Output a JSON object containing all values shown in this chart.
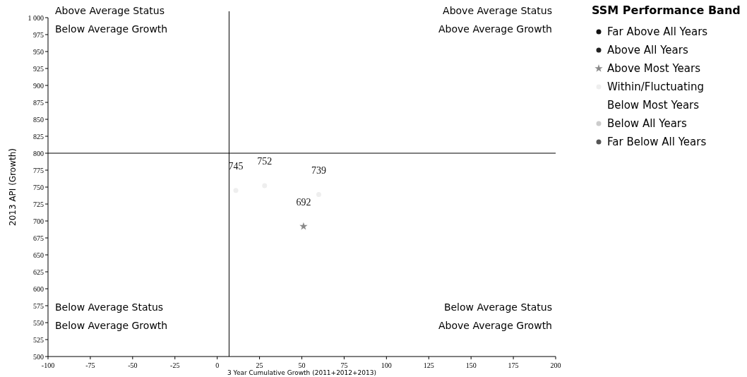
{
  "chart_data": {
    "type": "scatter",
    "xlabel": "3 Year Cumulative Growth (2011+2012+2013)",
    "ylabel": "2013 API (Growth)",
    "legend_title": "SSM Performance Band",
    "legend": "right",
    "grid": false,
    "data_labels": true,
    "xlim": [
      -100,
      200
    ],
    "xticks": [
      -100,
      -75,
      -50,
      -25,
      0,
      25,
      50,
      75,
      100,
      125,
      150,
      175,
      200
    ],
    "ylim": [
      500,
      1000
    ],
    "yticks": [
      500,
      525,
      550,
      575,
      600,
      625,
      650,
      675,
      700,
      725,
      750,
      775,
      800,
      825,
      850,
      875,
      900,
      925,
      950,
      975,
      {
        "value": 1000,
        "label": "1 000"
      }
    ],
    "ref_lines": [
      {
        "axis": "x",
        "value": 7
      },
      {
        "axis": "y",
        "value": 800
      }
    ],
    "annotations": [
      "Above Average Status",
      "Below Average Growth",
      "Above Average Status",
      "Above Average Growth",
      "Below Average Status",
      "Below Average Growth",
      "Below Average Status",
      "Above Average Growth"
    ],
    "series": [
      {
        "name": "Far Above All Years",
        "color": "#111111",
        "marker": "circle"
      },
      {
        "name": "Above All Years",
        "color": "#222222",
        "marker": "circle"
      },
      {
        "name": "Above Most Years",
        "color": "#8a8a8a",
        "marker": "star",
        "x": [
          51
        ],
        "values": [
          692
        ]
      },
      {
        "name": "Within/Fluctuating",
        "color": "#eeeeee",
        "marker": "circle",
        "x": [
          11,
          28,
          60
        ],
        "values": [
          745,
          752,
          739
        ]
      },
      {
        "name": "Below Most Years",
        "color": "#000000",
        "marker": "none"
      },
      {
        "name": "Below All Years",
        "color": "#cccccc",
        "marker": "circle"
      },
      {
        "name": "Far Below All Years",
        "color": "#555555",
        "marker": "circle"
      }
    ]
  }
}
